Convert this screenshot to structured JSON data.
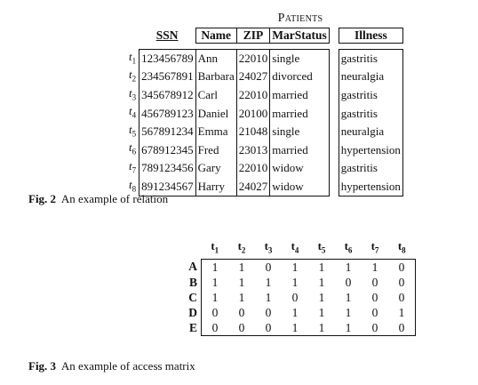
{
  "relation": {
    "title": "Patients",
    "headers": [
      "SSN",
      "Name",
      "ZIP",
      "MarStatus",
      "Illness"
    ],
    "tuple_prefix": "t",
    "rows": [
      {
        "id": "1",
        "ssn": "123456789",
        "name": "Ann",
        "zip": "22010",
        "mar": "single",
        "ill": "gastritis"
      },
      {
        "id": "2",
        "ssn": "234567891",
        "name": "Barbara",
        "zip": "24027",
        "mar": "divorced",
        "ill": "neuralgia"
      },
      {
        "id": "3",
        "ssn": "345678912",
        "name": "Carl",
        "zip": "22010",
        "mar": "married",
        "ill": "gastritis"
      },
      {
        "id": "4",
        "ssn": "456789123",
        "name": "Daniel",
        "zip": "20100",
        "mar": "married",
        "ill": "gastritis"
      },
      {
        "id": "5",
        "ssn": "567891234",
        "name": "Emma",
        "zip": "21048",
        "mar": "single",
        "ill": "neuralgia"
      },
      {
        "id": "6",
        "ssn": "678912345",
        "name": "Fred",
        "zip": "23013",
        "mar": "married",
        "ill": "hypertension"
      },
      {
        "id": "7",
        "ssn": "789123456",
        "name": "Gary",
        "zip": "22010",
        "mar": "widow",
        "ill": "gastritis"
      },
      {
        "id": "8",
        "ssn": "891234567",
        "name": "Harry",
        "zip": "24027",
        "mar": "widow",
        "ill": "hypertension"
      }
    ]
  },
  "caption2": {
    "label": "Fig. 2",
    "text": "An example of relation"
  },
  "matrix": {
    "columns": [
      "1",
      "2",
      "3",
      "4",
      "5",
      "6",
      "7",
      "8"
    ],
    "column_prefix": "t",
    "rows": [
      {
        "label": "A",
        "values": [
          "1",
          "1",
          "0",
          "1",
          "1",
          "1",
          "1",
          "0"
        ]
      },
      {
        "label": "B",
        "values": [
          "1",
          "1",
          "1",
          "1",
          "1",
          "0",
          "0",
          "0"
        ]
      },
      {
        "label": "C",
        "values": [
          "1",
          "1",
          "1",
          "0",
          "1",
          "1",
          "0",
          "0"
        ]
      },
      {
        "label": "D",
        "values": [
          "0",
          "0",
          "0",
          "1",
          "1",
          "1",
          "0",
          "1"
        ]
      },
      {
        "label": "E",
        "values": [
          "0",
          "0",
          "0",
          "1",
          "1",
          "1",
          "0",
          "0"
        ]
      }
    ]
  },
  "caption3": {
    "label": "Fig. 3",
    "text": "An example of access matrix"
  }
}
